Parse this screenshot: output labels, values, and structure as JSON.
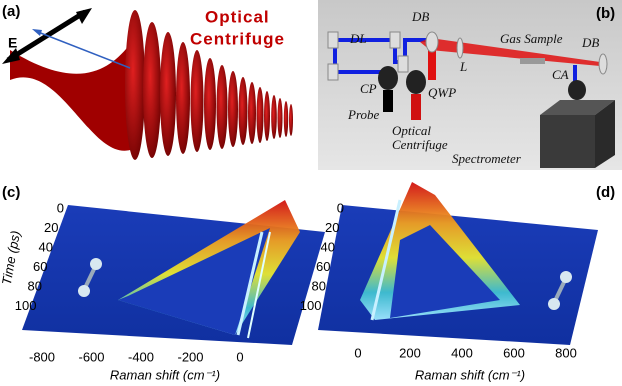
{
  "panel_a": {
    "label": "(a)",
    "field_label": "E",
    "title_lines": [
      "Optical",
      "Centrifuge"
    ]
  },
  "panel_b": {
    "label": "(b)",
    "components": {
      "db_left": "DB",
      "dl": "DL",
      "lens": "L",
      "gas_sample": "Gas Sample",
      "db_right": "DB",
      "cp": "CP",
      "qwp": "QWP",
      "ca": "CA",
      "probe": "Probe",
      "centrifuge_lines": [
        "Optical",
        "Centrifuge"
      ],
      "spectrometer": "Spectrometer"
    }
  },
  "panel_c": {
    "label": "(c)",
    "y_label": "Time (ps)",
    "y_ticks": [
      0,
      20,
      40,
      60,
      80,
      100
    ],
    "x_label": "Raman shift (cm⁻¹)",
    "x_ticks": [
      -800,
      -600,
      -400,
      -200,
      0
    ]
  },
  "panel_d": {
    "label": "(d)",
    "y_ticks": [
      0,
      20,
      40,
      60,
      80,
      100
    ],
    "x_label": "Raman shift (cm⁻¹)",
    "x_ticks": [
      0,
      200,
      400,
      600,
      800
    ]
  }
}
